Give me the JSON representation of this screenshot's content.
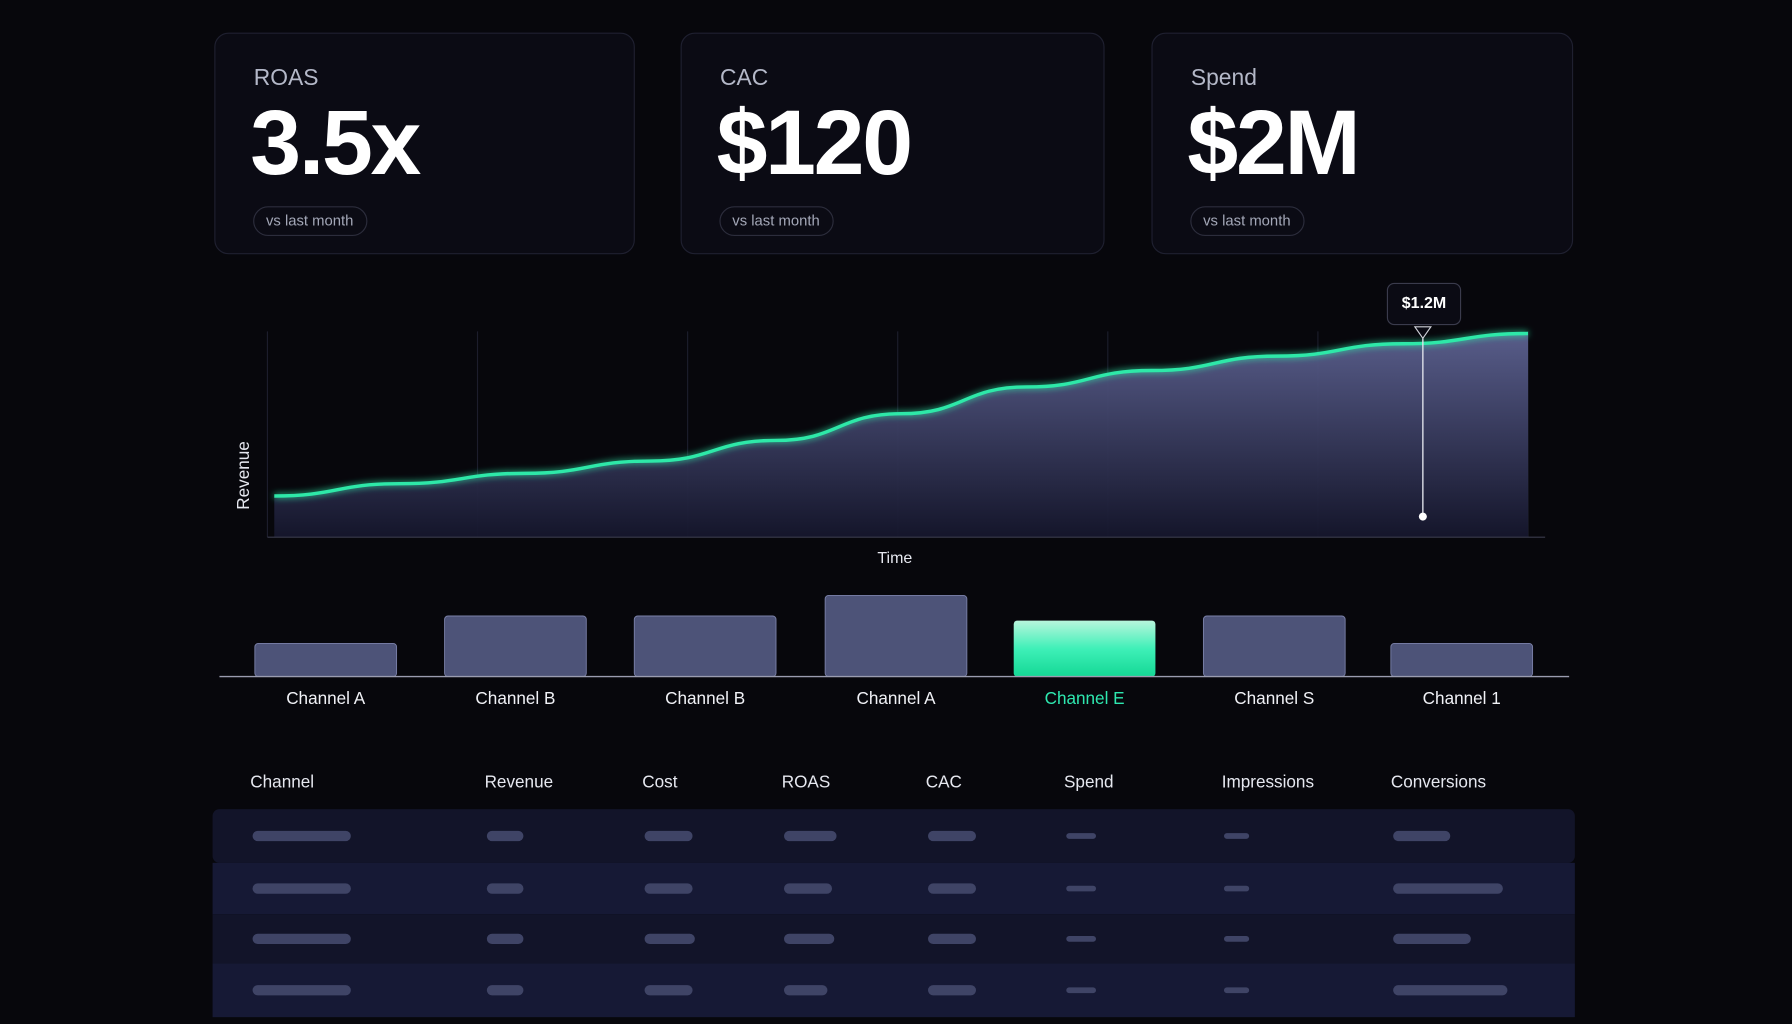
{
  "kpis": [
    {
      "label": "ROAS",
      "value": "3.5x",
      "note": "vs last month"
    },
    {
      "label": "CAC",
      "value": "$120",
      "note": "vs last month"
    },
    {
      "label": "Spend",
      "value": "$2M",
      "note": "vs last month"
    }
  ],
  "chart_data": [
    {
      "type": "area-line",
      "y_label": "Revenue",
      "x_label": "Time",
      "annotation": "$1.2M",
      "values": [
        20,
        26,
        31,
        37,
        47,
        60,
        73,
        81,
        88,
        94,
        99
      ],
      "ylim": [
        0,
        100
      ],
      "color": "#2ee8a8",
      "grid": true
    },
    {
      "type": "bar",
      "categories": [
        "Channel A",
        "Channel B",
        "Channel B",
        "Channel A",
        "Channel E",
        "Channel S",
        "Channel 1"
      ],
      "values": [
        29,
        53,
        53,
        71,
        49,
        53,
        29
      ],
      "ylim": [
        0,
        80
      ],
      "colors": [
        "#4d5378",
        "#4d5378",
        "#4d5378",
        "#4d5378",
        "#2ee8b0",
        "#4d5378",
        "#4d5378"
      ],
      "highlight_color": "#2ee8b0"
    }
  ],
  "table": {
    "headers": [
      "Channel",
      "Revenue",
      "Cost",
      "ROAS",
      "CAC",
      "Spend",
      "Impressions",
      "Conversions"
    ]
  }
}
